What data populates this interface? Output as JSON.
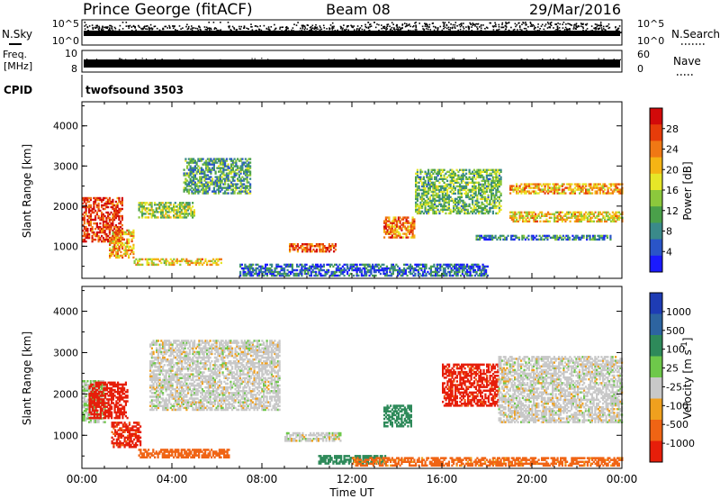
{
  "header": {
    "station": "Prince George (fitACF)",
    "beam": "Beam 08",
    "date": "29/Mar/2016"
  },
  "strips": {
    "nsky_label": "N.Sky",
    "nsky_ticks": [
      "10^5",
      "10^0"
    ],
    "nsearch_label": "N.Search",
    "nsearch_ticks": [
      "10^5",
      "10^0"
    ],
    "freq_label": "Freq.",
    "freq_unit": "[MHz]",
    "freq_ticks": [
      "10",
      "8"
    ],
    "nave_label": "Nave",
    "nave_ticks": [
      "60",
      "0"
    ],
    "cpid_label": "CPID",
    "cpid_value": "twofsound 3503"
  },
  "chart_data": [
    {
      "type": "heatmap",
      "name": "power-panel",
      "ylabel": "Slant Range [km]",
      "ylim": [
        200,
        4600
      ],
      "yticks": [
        "1000",
        "2000",
        "3000",
        "4000"
      ],
      "xlim": [
        0,
        24
      ],
      "colorbar": {
        "label": "Power [dB]",
        "ticks": [
          "4",
          "8",
          "12",
          "16",
          "20",
          "24",
          "28"
        ],
        "colors": [
          "#1a1aff",
          "#2a55c8",
          "#3a8a8a",
          "#4aa04a",
          "#8cc83c",
          "#e6e628",
          "#f5b414",
          "#f07814",
          "#e63c0a",
          "#d20a0a"
        ]
      },
      "echo_regions": [
        {
          "t": [
            0.0,
            1.8
          ],
          "r": [
            1100,
            2200
          ],
          "v": 26
        },
        {
          "t": [
            1.2,
            2.3
          ],
          "r": [
            700,
            1400
          ],
          "v": 20
        },
        {
          "t": [
            2.3,
            6.2
          ],
          "r": [
            520,
            700
          ],
          "v": 18
        },
        {
          "t": [
            2.5,
            5.0
          ],
          "r": [
            1700,
            2100
          ],
          "v": 14
        },
        {
          "t": [
            4.5,
            7.5
          ],
          "r": [
            2300,
            3200
          ],
          "v": 10
        },
        {
          "t": [
            9.2,
            11.3
          ],
          "r": [
            850,
            1050
          ],
          "v": 24
        },
        {
          "t": [
            13.4,
            14.8
          ],
          "r": [
            1200,
            1700
          ],
          "v": 22
        },
        {
          "t": [
            14.8,
            18.6
          ],
          "r": [
            1800,
            2900
          ],
          "v": 12
        },
        {
          "t": [
            19.0,
            24.0
          ],
          "r": [
            2300,
            2550
          ],
          "v": 20
        },
        {
          "t": [
            19.0,
            24.0
          ],
          "r": [
            1600,
            1850
          ],
          "v": 18
        },
        {
          "t": [
            17.5,
            23.5
          ],
          "r": [
            1150,
            1250
          ],
          "v": 8
        },
        {
          "t": [
            7.0,
            18.0
          ],
          "r": [
            250,
            550
          ],
          "v": 6
        }
      ]
    },
    {
      "type": "heatmap",
      "name": "velocity-panel",
      "ylabel": "Slant Range [km]",
      "xlabel": "Time UT",
      "ylim": [
        200,
        4600
      ],
      "yticks": [
        "1000",
        "2000",
        "3000",
        "4000"
      ],
      "xlim": [
        0,
        24
      ],
      "xticks": [
        "00:00",
        "04:00",
        "08:00",
        "12:00",
        "16:00",
        "20:00",
        "00:00"
      ],
      "colorbar": {
        "label": "Velocity [m s^-1]",
        "ticks": [
          "1000",
          "500",
          "100",
          "25",
          "-25",
          "-100",
          "-500",
          "-1000"
        ],
        "colors": [
          "#1e3cb4",
          "#2d64a0",
          "#2e8a5a",
          "#6ec84a",
          "#c8c8c8",
          "#f0a01e",
          "#f06414",
          "#e61e0a"
        ]
      },
      "echo_regions": [
        {
          "t": [
            0.0,
            1.0
          ],
          "r": [
            1300,
            2300
          ],
          "v": 25
        },
        {
          "t": [
            0.3,
            2.0
          ],
          "r": [
            1400,
            2300
          ],
          "v": -700
        },
        {
          "t": [
            1.3,
            2.6
          ],
          "r": [
            700,
            1300
          ],
          "v": -600
        },
        {
          "t": [
            2.5,
            6.5
          ],
          "r": [
            450,
            650
          ],
          "v": -250
        },
        {
          "t": [
            3.0,
            8.8
          ],
          "r": [
            1600,
            3300
          ],
          "v": 0
        },
        {
          "t": [
            9.0,
            11.5
          ],
          "r": [
            850,
            1050
          ],
          "v": 0
        },
        {
          "t": [
            10.5,
            13.5
          ],
          "r": [
            300,
            500
          ],
          "v": 200
        },
        {
          "t": [
            13.4,
            14.6
          ],
          "r": [
            1200,
            1700
          ],
          "v": 150
        },
        {
          "t": [
            16.0,
            18.5
          ],
          "r": [
            1700,
            2700
          ],
          "v": -600
        },
        {
          "t": [
            18.5,
            24.0
          ],
          "r": [
            1300,
            2900
          ],
          "v": 0
        },
        {
          "t": [
            12.0,
            24.0
          ],
          "r": [
            250,
            450
          ],
          "v": -150
        }
      ]
    }
  ]
}
